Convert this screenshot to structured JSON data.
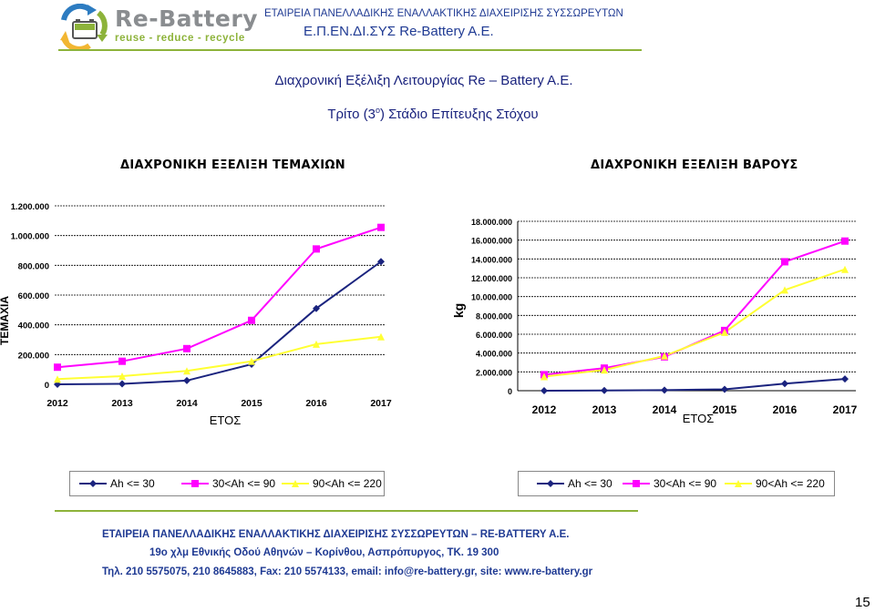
{
  "header": {
    "logo_text": "Re-Battery",
    "logo_tagline": "reuse - reduce - recycle",
    "company_line": "ΕΤΑΙΡΕΙΑ ΠΑΝΕΛΛΑΔΙΚΗΣ ΕΝΑΛΛΑΚΤΙΚΗΣ ΔΙΑΧΕΙΡΙΣΗΣ ΣΥΣΣΩΡΕΥΤΩΝ",
    "company_short": "Ε.Π.ΕΝ.ΔΙ.ΣΥΣ Re-Battery A.E."
  },
  "titles": {
    "main": "Διαχρονική Εξέλιξη Λειτουργίας Re – Battery A.E.",
    "stage_prefix": "Τρίτο (3",
    "stage_sup": "ο",
    "stage_suffix": ") Στάδιο Επίτευξης Στόχου"
  },
  "colors": {
    "series1": "#1a237e",
    "series2": "#ff00ff",
    "series3": "#ffff33",
    "accent_green": "#8db33a",
    "header_blue": "#1f3a93"
  },
  "chart_data": [
    {
      "type": "line",
      "title": "ΔΙΑΧΡΟΝΙΚΗ ΕΞΕΛΙΞΗ ΤΕΜΑΧΙΩΝ",
      "xlabel": "ΕΤΟΣ",
      "ylabel": "ΤΕΜΑΧΙΑ",
      "x": [
        "2012",
        "2013",
        "2014",
        "2015",
        "2016",
        "2017"
      ],
      "ylim": [
        0,
        1200000
      ],
      "yticks": [
        "0",
        "200.000",
        "400.000",
        "600.000",
        "800.000",
        "1.000.000",
        "1.200.000"
      ],
      "grid": true,
      "legend_position": "bottom",
      "series": [
        {
          "name": "Ah <= 30",
          "values": [
            0,
            3000,
            25000,
            135000,
            510000,
            825000
          ]
        },
        {
          "name": "30<Ah <= 90",
          "values": [
            115000,
            155000,
            240000,
            430000,
            910000,
            1055000
          ]
        },
        {
          "name": "90<Ah <= 220",
          "values": [
            35000,
            55000,
            90000,
            155000,
            270000,
            320000
          ]
        }
      ]
    },
    {
      "type": "line",
      "title": "ΔΙΑΧΡΟΝΙΚΗ ΕΞΕΛΙΞΗ ΒΑΡΟΥΣ",
      "xlabel": "ΕΤΟΣ",
      "ylabel": "kg",
      "x": [
        "2012",
        "2013",
        "2014",
        "2015",
        "2016",
        "2017"
      ],
      "ylim": [
        0,
        18000000
      ],
      "yticks": [
        "0",
        "2.000.000",
        "4.000.000",
        "6.000.000",
        "8.000.000",
        "10.000.000",
        "12.000.000",
        "14.000.000",
        "16.000.000",
        "18.000.000"
      ],
      "grid": true,
      "legend_position": "bottom",
      "series": [
        {
          "name": "Ah <= 30",
          "values": [
            0,
            20000,
            60000,
            150000,
            750000,
            1250000
          ]
        },
        {
          "name": "30<Ah <= 90",
          "values": [
            1700000,
            2400000,
            3600000,
            6400000,
            13700000,
            15900000
          ]
        },
        {
          "name": "90<Ah <= 220",
          "values": [
            1500000,
            2200000,
            3700000,
            6200000,
            10700000,
            12900000
          ]
        }
      ]
    }
  ],
  "footer": {
    "line1": "ΕΤΑΙΡΕΙΑ ΠΑΝΕΛΛΑΔΙΚΗΣ ΕΝΑΛΛΑΚΤΙΚΗΣ ΔΙΑΧΕΙΡΙΣΗΣ ΣΥΣΣΩΡΕΥΤΩΝ – RE-BATTERY A.E.",
    "line2": "19o χλμ Εθνικής Οδού Αθηνών – Κορίνθου, Ασπρόπυργος, ΤΚ. 19 300",
    "line3": "Τηλ. 210 5575075, 210 8645883, Fax: 210 5574133, email: info@re-battery.gr, site: www.re-battery.gr"
  },
  "page_number": "15"
}
